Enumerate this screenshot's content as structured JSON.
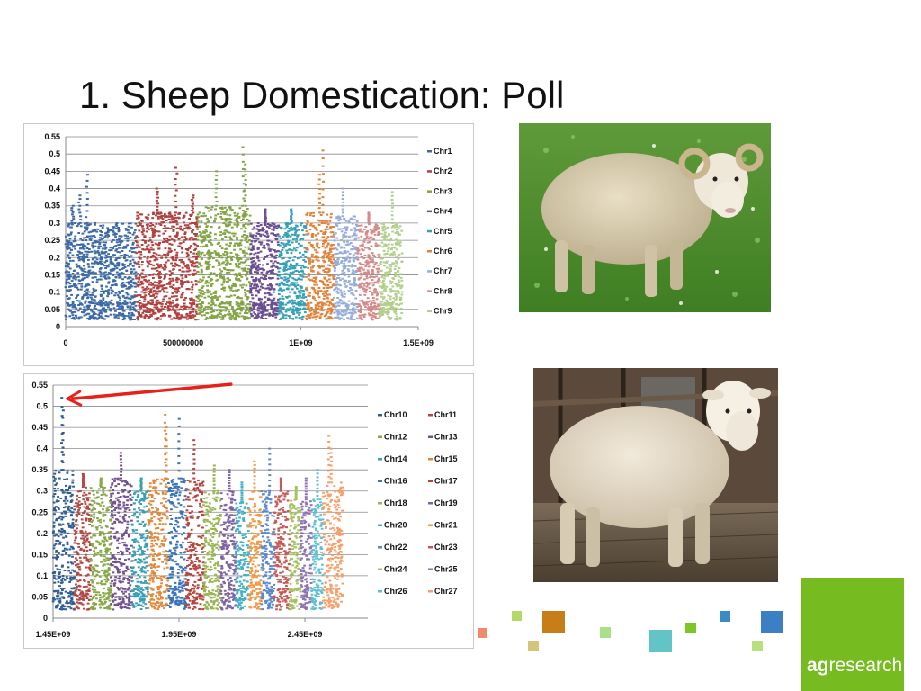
{
  "slide": {
    "title": "1. Sheep Domestication: Poll"
  },
  "logo": {
    "bold": "ag",
    "rest": "research"
  },
  "photos": [
    {
      "name": "horned-sheep-photo",
      "label": ""
    },
    {
      "name": "polled-sheep-photo",
      "label": ""
    }
  ],
  "colors": {
    "decor": [
      "#f08a6c",
      "#b4d96a",
      "#d4c47c",
      "#c77d18",
      "#a8e08c",
      "#62c4c6",
      "#7cc627",
      "#3c8ac6",
      "#b8e07c",
      "#3b80c4"
    ]
  },
  "chart_data": [
    {
      "type": "scatter",
      "title": "",
      "xlabel": "",
      "ylabel": "",
      "xlim": [
        0,
        1500000000
      ],
      "ylim": [
        0,
        0.55
      ],
      "yticks": [
        "0",
        "0.05",
        "0.1",
        "0.15",
        "0.2",
        "0.25",
        "0.3",
        "0.35",
        "0.4",
        "0.45",
        "0.5",
        "0.55"
      ],
      "xticks": [
        {
          "value": 0,
          "label": "0"
        },
        {
          "value": 500000000,
          "label": "500000000"
        },
        {
          "value": 1000000000,
          "label": "1E+09"
        },
        {
          "value": 1500000000,
          "label": "1.5E+09"
        }
      ],
      "grid": true,
      "legend_position": "right",
      "series": [
        {
          "name": "Chr1",
          "color": "#3d6aa6",
          "x_range": [
            0,
            299000000
          ],
          "typical_range": [
            0.02,
            0.3
          ],
          "peaks": [
            [
              30000000,
              0.35
            ],
            [
              60000000,
              0.38
            ],
            [
              90000000,
              0.44
            ]
          ]
        },
        {
          "name": "Chr2",
          "color": "#b0413e",
          "x_range": [
            299000000,
            562000000
          ],
          "typical_range": [
            0.02,
            0.33
          ],
          "peaks": [
            [
              390000000,
              0.4
            ],
            [
              470000000,
              0.46
            ],
            [
              540000000,
              0.38
            ]
          ]
        },
        {
          "name": "Chr3",
          "color": "#82a444",
          "x_range": [
            562000000,
            786000000
          ],
          "typical_range": [
            0.02,
            0.35
          ],
          "peaks": [
            [
              640000000,
              0.45
            ],
            [
              755000000,
              0.52
            ],
            [
              765000000,
              0.47
            ]
          ]
        },
        {
          "name": "Chr4",
          "color": "#6a4c93",
          "x_range": [
            786000000,
            907000000
          ],
          "typical_range": [
            0.02,
            0.3
          ],
          "peaks": [
            [
              850000000,
              0.34
            ]
          ]
        },
        {
          "name": "Chr5",
          "color": "#33a0b7",
          "x_range": [
            907000000,
            1023000000
          ],
          "typical_range": [
            0.02,
            0.3
          ],
          "peaks": [
            [
              960000000,
              0.34
            ]
          ]
        },
        {
          "name": "Chr6",
          "color": "#e0823a",
          "x_range": [
            1023000000,
            1142000000
          ],
          "typical_range": [
            0.02,
            0.33
          ],
          "peaks": [
            [
              1080000000,
              0.44
            ],
            [
              1095000000,
              0.51
            ]
          ]
        },
        {
          "name": "Chr7",
          "color": "#96adda",
          "x_range": [
            1142000000,
            1243000000
          ],
          "typical_range": [
            0.02,
            0.32
          ],
          "peaks": [
            [
              1180000000,
              0.4
            ]
          ]
        },
        {
          "name": "Chr8",
          "color": "#d48a8a",
          "x_range": [
            1243000000,
            1334000000
          ],
          "typical_range": [
            0.02,
            0.3
          ],
          "peaks": [
            [
              1290000000,
              0.33
            ]
          ]
        },
        {
          "name": "Chr9",
          "color": "#b2cf8c",
          "x_range": [
            1334000000,
            1432000000
          ],
          "typical_range": [
            0.02,
            0.3
          ],
          "peaks": [
            [
              1390000000,
              0.39
            ]
          ]
        }
      ]
    },
    {
      "type": "scatter",
      "title": "",
      "xlabel": "",
      "ylabel": "",
      "xlim": [
        1450000000,
        2700000000
      ],
      "ylim": [
        0,
        0.55
      ],
      "yticks": [
        "0",
        "0.05",
        "0.1",
        "0.15",
        "0.2",
        "0.25",
        "0.3",
        "0.35",
        "0.4",
        "0.45",
        "0.5",
        "0.55"
      ],
      "xticks": [
        {
          "value": 1450000000,
          "label": "1.45E+09"
        },
        {
          "value": 1950000000,
          "label": "1.95E+09"
        },
        {
          "value": 2450000000,
          "label": "2.45E+09"
        }
      ],
      "grid": true,
      "legend_position": "right",
      "annotation": {
        "type": "arrow",
        "points_to": [
          1485000000,
          0.52
        ],
        "color": "#e8201a"
      },
      "series": [
        {
          "name": "Chr10",
          "color": "#2f5d92",
          "x_range": [
            1450000000,
            1535000000
          ],
          "typical_range": [
            0.02,
            0.35
          ],
          "peaks": [
            [
              1485000000,
              0.52
            ],
            [
              1490000000,
              0.49
            ]
          ]
        },
        {
          "name": "Chr11",
          "color": "#b24843",
          "x_range": [
            1535000000,
            1600000000
          ],
          "typical_range": [
            0.02,
            0.31
          ],
          "peaks": [
            [
              1570000000,
              0.34
            ]
          ]
        },
        {
          "name": "Chr12",
          "color": "#86a846",
          "x_range": [
            1600000000,
            1680000000
          ],
          "typical_range": [
            0.02,
            0.31
          ],
          "peaks": [
            [
              1640000000,
              0.33
            ]
          ]
        },
        {
          "name": "Chr13",
          "color": "#70508f",
          "x_range": [
            1680000000,
            1763000000
          ],
          "typical_range": [
            0.02,
            0.33
          ],
          "peaks": [
            [
              1720000000,
              0.39
            ]
          ]
        },
        {
          "name": "Chr14",
          "color": "#3a9fb5",
          "x_range": [
            1763000000,
            1827000000
          ],
          "typical_range": [
            0.02,
            0.3
          ],
          "peaks": [
            [
              1800000000,
              0.33
            ]
          ]
        },
        {
          "name": "Chr15",
          "color": "#e08a3e",
          "x_range": [
            1827000000,
            1907000000
          ],
          "typical_range": [
            0.02,
            0.33
          ],
          "peaks": [
            [
              1895000000,
              0.48
            ],
            [
              1900000000,
              0.45
            ]
          ]
        },
        {
          "name": "Chr16",
          "color": "#3a74b8",
          "x_range": [
            1907000000,
            1978000000
          ],
          "typical_range": [
            0.02,
            0.33
          ],
          "peaks": [
            [
              1950000000,
              0.47
            ]
          ]
        },
        {
          "name": "Chr17",
          "color": "#b6443f",
          "x_range": [
            1978000000,
            2048000000
          ],
          "typical_range": [
            0.02,
            0.33
          ],
          "peaks": [
            [
              2010000000,
              0.42
            ]
          ]
        },
        {
          "name": "Chr18",
          "color": "#9ab654",
          "x_range": [
            2048000000,
            2116000000
          ],
          "typical_range": [
            0.02,
            0.3
          ],
          "peaks": [
            [
              2090000000,
              0.36
            ]
          ]
        },
        {
          "name": "Chr19",
          "color": "#7e62a4",
          "x_range": [
            2116000000,
            2176000000
          ],
          "typical_range": [
            0.02,
            0.3
          ],
          "peaks": [
            [
              2150000000,
              0.35
            ]
          ]
        },
        {
          "name": "Chr20",
          "color": "#43b0c4",
          "x_range": [
            2176000000,
            2227000000
          ],
          "typical_range": [
            0.02,
            0.28
          ],
          "peaks": [
            [
              2200000000,
              0.32
            ]
          ]
        },
        {
          "name": "Chr21",
          "color": "#ef9a47",
          "x_range": [
            2227000000,
            2277000000
          ],
          "typical_range": [
            0.02,
            0.3
          ],
          "peaks": [
            [
              2250000000,
              0.37
            ]
          ]
        },
        {
          "name": "Chr22",
          "color": "#5a88cc",
          "x_range": [
            2277000000,
            2328000000
          ],
          "typical_range": [
            0.02,
            0.3
          ],
          "peaks": [
            [
              2310000000,
              0.4
            ]
          ]
        },
        {
          "name": "Chr23",
          "color": "#c45a55",
          "x_range": [
            2328000000,
            2390000000
          ],
          "typical_range": [
            0.02,
            0.3
          ],
          "peaks": [
            [
              2355000000,
              0.33
            ]
          ]
        },
        {
          "name": "Chr24",
          "color": "#a4c262",
          "x_range": [
            2390000000,
            2432000000
          ],
          "typical_range": [
            0.02,
            0.28
          ],
          "peaks": [
            [
              2415000000,
              0.31
            ]
          ]
        },
        {
          "name": "Chr25",
          "color": "#8e72b4",
          "x_range": [
            2432000000,
            2477000000
          ],
          "typical_range": [
            0.02,
            0.28
          ],
          "peaks": [
            [
              2455000000,
              0.33
            ]
          ]
        },
        {
          "name": "Chr26",
          "color": "#5ec0d2",
          "x_range": [
            2477000000,
            2522000000
          ],
          "typical_range": [
            0.02,
            0.28
          ],
          "peaks": [
            [
              2500000000,
              0.35
            ]
          ]
        },
        {
          "name": "Chr27",
          "color": "#f5a06a",
          "x_range": [
            2522000000,
            2600000000
          ],
          "typical_range": [
            0.02,
            0.32
          ],
          "peaks": [
            [
              2545000000,
              0.43
            ],
            [
              2555000000,
              0.4
            ]
          ]
        }
      ]
    }
  ]
}
